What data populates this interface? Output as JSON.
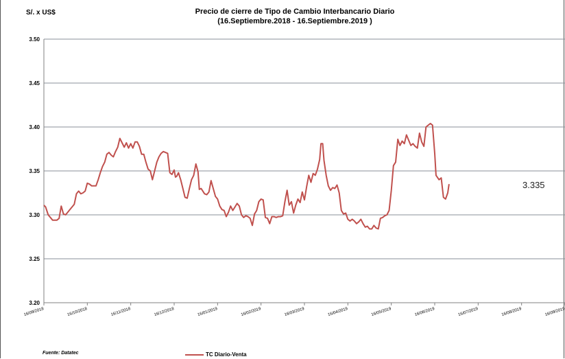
{
  "chart_data": {
    "type": "line",
    "title": "Precio de cierre de Tipo de Cambio Interbancario Diario",
    "subtitle": "(16.Septiembre.2018 - 16.Septiembre.2019 )",
    "ylabel": "S/. x US$",
    "xlabel": "",
    "ylim": [
      3.2,
      3.5
    ],
    "yticks": [
      "3.50",
      "3.45",
      "3.40",
      "3.35",
      "3.30",
      "3.25",
      "3.20"
    ],
    "xticks": [
      "16/09/2018",
      "16/10/2018",
      "16/11/2018",
      "16/12/2018",
      "16/01/2019",
      "16/02/2019",
      "16/03/2019",
      "16/04/2019",
      "16/05/2019",
      "16/06/2019",
      "16/07/2019",
      "16/08/2019",
      "16/09/2019"
    ],
    "grid": true,
    "legend_position": "bottom",
    "annotation": "3.335",
    "source": "Fuente: Datatec",
    "series": [
      {
        "name": "TC Diario-Venta",
        "color": "#c0504d",
        "points": [
          [
            0,
            3.311
          ],
          [
            0.04,
            3.309
          ],
          [
            0.1,
            3.3
          ],
          [
            0.2,
            3.294
          ],
          [
            0.3,
            3.294
          ],
          [
            0.35,
            3.296
          ],
          [
            0.4,
            3.31
          ],
          [
            0.45,
            3.301
          ],
          [
            0.5,
            3.3
          ],
          [
            0.6,
            3.306
          ],
          [
            0.7,
            3.312
          ],
          [
            0.75,
            3.324
          ],
          [
            0.8,
            3.327
          ],
          [
            0.85,
            3.324
          ],
          [
            0.9,
            3.325
          ],
          [
            0.95,
            3.327
          ],
          [
            1.0,
            3.336
          ],
          [
            1.05,
            3.335
          ],
          [
            1.1,
            3.333
          ],
          [
            1.15,
            3.333
          ],
          [
            1.2,
            3.333
          ],
          [
            1.25,
            3.34
          ],
          [
            1.3,
            3.348
          ],
          [
            1.35,
            3.355
          ],
          [
            1.4,
            3.36
          ],
          [
            1.45,
            3.369
          ],
          [
            1.5,
            3.371
          ],
          [
            1.55,
            3.368
          ],
          [
            1.6,
            3.366
          ],
          [
            1.65,
            3.372
          ],
          [
            1.7,
            3.377
          ],
          [
            1.75,
            3.387
          ],
          [
            1.8,
            3.382
          ],
          [
            1.85,
            3.377
          ],
          [
            1.9,
            3.382
          ],
          [
            1.95,
            3.376
          ],
          [
            2.0,
            3.381
          ],
          [
            2.05,
            3.376
          ],
          [
            2.1,
            3.383
          ],
          [
            2.15,
            3.383
          ],
          [
            2.2,
            3.378
          ],
          [
            2.25,
            3.369
          ],
          [
            2.3,
            3.369
          ],
          [
            2.35,
            3.36
          ],
          [
            2.4,
            3.352
          ],
          [
            2.45,
            3.35
          ],
          [
            2.5,
            3.34
          ],
          [
            2.55,
            3.35
          ],
          [
            2.6,
            3.36
          ],
          [
            2.65,
            3.366
          ],
          [
            2.7,
            3.37
          ],
          [
            2.75,
            3.372
          ],
          [
            2.8,
            3.371
          ],
          [
            2.85,
            3.37
          ],
          [
            2.9,
            3.348
          ],
          [
            2.95,
            3.346
          ],
          [
            3.0,
            3.351
          ],
          [
            3.03,
            3.343
          ],
          [
            3.06,
            3.344
          ],
          [
            3.1,
            3.348
          ],
          [
            3.15,
            3.34
          ],
          [
            3.2,
            3.33
          ],
          [
            3.25,
            3.32
          ],
          [
            3.3,
            3.319
          ],
          [
            3.35,
            3.33
          ],
          [
            3.4,
            3.34
          ],
          [
            3.45,
            3.345
          ],
          [
            3.5,
            3.358
          ],
          [
            3.55,
            3.349
          ],
          [
            3.58,
            3.329
          ],
          [
            3.62,
            3.33
          ],
          [
            3.66,
            3.327
          ],
          [
            3.7,
            3.324
          ],
          [
            3.75,
            3.323
          ],
          [
            3.8,
            3.326
          ],
          [
            3.85,
            3.339
          ],
          [
            3.9,
            3.33
          ],
          [
            3.95,
            3.321
          ],
          [
            4.0,
            3.318
          ],
          [
            4.05,
            3.31
          ],
          [
            4.1,
            3.306
          ],
          [
            4.15,
            3.305
          ],
          [
            4.2,
            3.298
          ],
          [
            4.25,
            3.303
          ],
          [
            4.3,
            3.31
          ],
          [
            4.35,
            3.305
          ],
          [
            4.4,
            3.309
          ],
          [
            4.45,
            3.313
          ],
          [
            4.5,
            3.31
          ],
          [
            4.55,
            3.3
          ],
          [
            4.6,
            3.297
          ],
          [
            4.65,
            3.299
          ],
          [
            4.7,
            3.298
          ],
          [
            4.75,
            3.296
          ],
          [
            4.8,
            3.288
          ],
          [
            4.85,
            3.301
          ],
          [
            4.9,
            3.305
          ],
          [
            4.95,
            3.315
          ],
          [
            5.0,
            3.318
          ],
          [
            5.05,
            3.317
          ],
          [
            5.1,
            3.297
          ],
          [
            5.15,
            3.296
          ],
          [
            5.2,
            3.29
          ],
          [
            5.25,
            3.298
          ],
          [
            5.3,
            3.298
          ],
          [
            5.35,
            3.297
          ],
          [
            5.4,
            3.298
          ],
          [
            5.45,
            3.298
          ],
          [
            5.5,
            3.299
          ],
          [
            5.55,
            3.315
          ],
          [
            5.6,
            3.328
          ],
          [
            5.65,
            3.311
          ],
          [
            5.7,
            3.315
          ],
          [
            5.75,
            3.302
          ],
          [
            5.8,
            3.311
          ],
          [
            5.85,
            3.318
          ],
          [
            5.9,
            3.314
          ],
          [
            5.95,
            3.326
          ],
          [
            6.0,
            3.317
          ],
          [
            6.05,
            3.332
          ],
          [
            6.1,
            3.345
          ],
          [
            6.15,
            3.337
          ],
          [
            6.2,
            3.347
          ],
          [
            6.25,
            3.345
          ],
          [
            6.3,
            3.352
          ],
          [
            6.35,
            3.363
          ],
          [
            6.38,
            3.381
          ],
          [
            6.42,
            3.381
          ],
          [
            6.45,
            3.362
          ],
          [
            6.5,
            3.345
          ],
          [
            6.55,
            3.333
          ],
          [
            6.6,
            3.328
          ],
          [
            6.65,
            3.331
          ],
          [
            6.7,
            3.33
          ],
          [
            6.75,
            3.334
          ],
          [
            6.8,
            3.325
          ],
          [
            6.85,
            3.305
          ],
          [
            6.9,
            3.301
          ],
          [
            6.95,
            3.302
          ],
          [
            7.0,
            3.295
          ],
          [
            7.05,
            3.293
          ],
          [
            7.1,
            3.295
          ],
          [
            7.15,
            3.293
          ],
          [
            7.2,
            3.29
          ],
          [
            7.25,
            3.292
          ],
          [
            7.3,
            3.295
          ],
          [
            7.35,
            3.29
          ],
          [
            7.4,
            3.286
          ],
          [
            7.45,
            3.287
          ],
          [
            7.5,
            3.284
          ],
          [
            7.55,
            3.284
          ],
          [
            7.6,
            3.288
          ],
          [
            7.65,
            3.285
          ],
          [
            7.7,
            3.284
          ],
          [
            7.75,
            3.296
          ],
          [
            7.8,
            3.297
          ],
          [
            7.85,
            3.299
          ],
          [
            7.9,
            3.3
          ],
          [
            7.95,
            3.305
          ],
          [
            8.0,
            3.328
          ],
          [
            8.05,
            3.356
          ],
          [
            8.1,
            3.36
          ],
          [
            8.15,
            3.386
          ],
          [
            8.2,
            3.379
          ],
          [
            8.25,
            3.384
          ],
          [
            8.3,
            3.381
          ],
          [
            8.35,
            3.391
          ],
          [
            8.4,
            3.385
          ],
          [
            8.45,
            3.379
          ],
          [
            8.5,
            3.381
          ],
          [
            8.55,
            3.378
          ],
          [
            8.6,
            3.376
          ],
          [
            8.65,
            3.393
          ],
          [
            8.7,
            3.383
          ],
          [
            8.75,
            3.378
          ],
          [
            8.8,
            3.4
          ],
          [
            8.85,
            3.402
          ],
          [
            8.9,
            3.404
          ],
          [
            8.95,
            3.402
          ],
          [
            9.0,
            3.37
          ],
          [
            9.03,
            3.345
          ],
          [
            9.1,
            3.34
          ],
          [
            9.15,
            3.342
          ],
          [
            9.2,
            3.32
          ],
          [
            9.25,
            3.318
          ],
          [
            9.3,
            3.325
          ],
          [
            9.33,
            3.335
          ]
        ]
      }
    ]
  }
}
